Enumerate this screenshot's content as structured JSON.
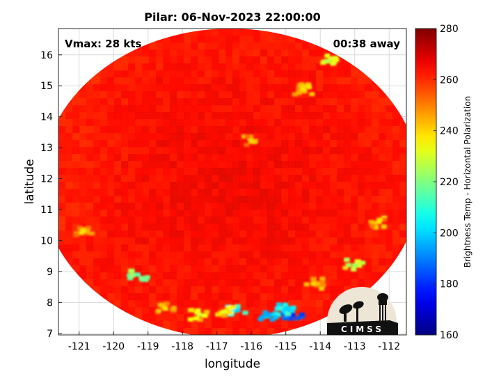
{
  "chart_data": {
    "type": "heatmap",
    "title": "Pilar: 06-Nov-2023 22:00:00",
    "xlabel": "longitude",
    "ylabel": "latitude",
    "xlim": [
      -121.6,
      -111.5
    ],
    "ylim": [
      6.95,
      16.85
    ],
    "x_ticks": [
      -121,
      -120,
      -119,
      -118,
      -117,
      -116,
      -115,
      -114,
      -113,
      -112
    ],
    "y_ticks": [
      7,
      8,
      9,
      10,
      11,
      12,
      13,
      14,
      15,
      16
    ],
    "grid": true,
    "colorbar": {
      "label": "Brightness Temp - Horizontal Polarization",
      "range": [
        160,
        280
      ],
      "ticks": [
        160,
        180,
        200,
        220,
        240,
        260,
        280
      ],
      "colormap": "jet",
      "placement": "right"
    },
    "annotations": {
      "top_left": "Vmax: 28 kts",
      "top_right": "00:38 away"
    },
    "swath": {
      "shape": "circle",
      "center": [
        -116.6,
        11.85
      ],
      "radius_lon": 5.5,
      "radius_lat": 5.0,
      "background_value": 262
    },
    "features": [
      {
        "lon": -116.4,
        "lat": 7.75,
        "value": 200
      },
      {
        "lon": -115.5,
        "lat": 7.6,
        "value": 195
      },
      {
        "lon": -114.8,
        "lat": 7.6,
        "value": 180
      },
      {
        "lon": -115.0,
        "lat": 7.8,
        "value": 200
      },
      {
        "lon": -117.5,
        "lat": 7.6,
        "value": 230
      },
      {
        "lon": -116.8,
        "lat": 7.7,
        "value": 232
      },
      {
        "lon": -118.5,
        "lat": 7.8,
        "value": 238
      },
      {
        "lon": -119.3,
        "lat": 8.9,
        "value": 215
      },
      {
        "lon": -113.0,
        "lat": 9.2,
        "value": 225
      },
      {
        "lon": -113.8,
        "lat": 15.8,
        "value": 228
      },
      {
        "lon": -114.5,
        "lat": 14.9,
        "value": 238
      },
      {
        "lon": -116.0,
        "lat": 13.2,
        "value": 240
      },
      {
        "lon": -112.3,
        "lat": 10.6,
        "value": 238
      },
      {
        "lon": -120.9,
        "lat": 10.3,
        "value": 238
      },
      {
        "lon": -114.2,
        "lat": 8.6,
        "value": 240
      }
    ]
  },
  "logo": {
    "text": "CIMSS",
    "icon": "cimss-logo"
  },
  "colors": {
    "background": "#ffffff",
    "swath_base": "#1a52e6",
    "logo_bg": "#ede6d6"
  }
}
